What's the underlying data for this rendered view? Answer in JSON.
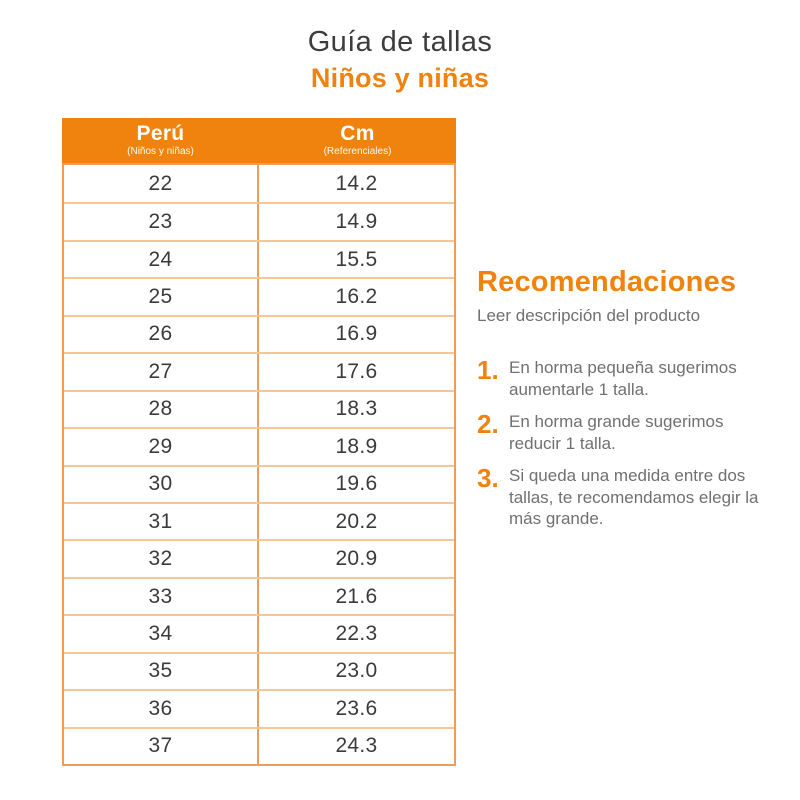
{
  "title": {
    "main": "Guía de tallas",
    "subtitle": "Niños y niñas"
  },
  "colors": {
    "orange": "#F0830D",
    "table_outer_border": "#EE9C58",
    "row_divider": "#F6C795",
    "dark_text": "#3B3B3A",
    "gray_text": "#6F7072",
    "header_text": "#FFFFFF",
    "background": "#FFFFFF"
  },
  "table": {
    "header": {
      "col1_label": "Perú",
      "col1_sub": "(Niños y niñas)",
      "col2_label": "Cm",
      "col2_sub": "(Referenciales)"
    },
    "rows": [
      {
        "peru": "22",
        "cm": "14.2"
      },
      {
        "peru": "23",
        "cm": "14.9"
      },
      {
        "peru": "24",
        "cm": "15.5"
      },
      {
        "peru": "25",
        "cm": "16.2"
      },
      {
        "peru": "26",
        "cm": "16.9"
      },
      {
        "peru": "27",
        "cm": "17.6"
      },
      {
        "peru": "28",
        "cm": "18.3"
      },
      {
        "peru": "29",
        "cm": "18.9"
      },
      {
        "peru": "30",
        "cm": "19.6"
      },
      {
        "peru": "31",
        "cm": "20.2"
      },
      {
        "peru": "32",
        "cm": "20.9"
      },
      {
        "peru": "33",
        "cm": "21.6"
      },
      {
        "peru": "34",
        "cm": "22.3"
      },
      {
        "peru": "35",
        "cm": "23.0"
      },
      {
        "peru": "36",
        "cm": "23.6"
      },
      {
        "peru": "37",
        "cm": "24.3"
      }
    ]
  },
  "recommendations": {
    "title": "Recomendaciones",
    "subtitle": "Leer descripción del producto",
    "items": [
      {
        "number": "1.",
        "text": "En horma pequeña sugerimos aumentarle 1 talla."
      },
      {
        "number": "2.",
        "text": "En horma grande sugerimos reducir 1 talla."
      },
      {
        "number": "3.",
        "text": "Si queda una medida entre dos tallas, te recomendamos elegir la más grande."
      }
    ]
  },
  "chart_data": {
    "type": "table",
    "title": "Guía de tallas - Niños y niñas",
    "columns": [
      "Perú (Niños y niñas)",
      "Cm (Referenciales)"
    ],
    "rows": [
      [
        22,
        14.2
      ],
      [
        23,
        14.9
      ],
      [
        24,
        15.5
      ],
      [
        25,
        16.2
      ],
      [
        26,
        16.9
      ],
      [
        27,
        17.6
      ],
      [
        28,
        18.3
      ],
      [
        29,
        18.9
      ],
      [
        30,
        19.6
      ],
      [
        31,
        20.2
      ],
      [
        32,
        20.9
      ],
      [
        33,
        21.6
      ],
      [
        34,
        22.3
      ],
      [
        35,
        23.0
      ],
      [
        36,
        23.6
      ],
      [
        37,
        24.3
      ]
    ]
  }
}
